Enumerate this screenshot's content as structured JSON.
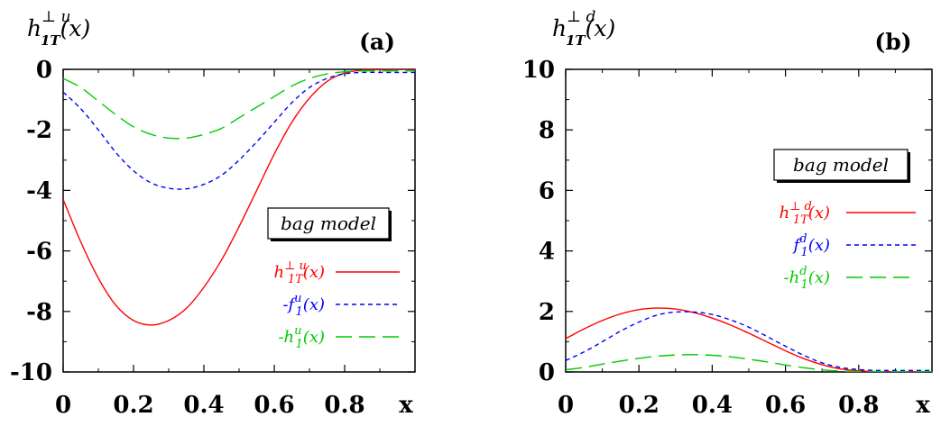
{
  "chart_data": [
    {
      "type": "line",
      "panel_label": "(a)",
      "ylabel": {
        "base": "h",
        "sup": "⊥ u",
        "sub": "1T",
        "arg": "(x)"
      },
      "xlabel": "x",
      "xlim": [
        0,
        1
      ],
      "ylim": [
        -10,
        0
      ],
      "xticks": [
        "0",
        "0.2",
        "0.4",
        "0.6",
        "0.8"
      ],
      "yticks": [
        "0",
        "-2",
        "-4",
        "-6",
        "-8",
        "-10"
      ],
      "model_label": "bag model",
      "legend_position": "center-right",
      "series": [
        {
          "name": {
            "pre": "",
            "base": "h",
            "sup": "⊥ u",
            "sub": "1T",
            "arg": "(x)"
          },
          "color": "#ff0000",
          "dash": "solid",
          "x": [
            0,
            0.05,
            0.1,
            0.15,
            0.2,
            0.25,
            0.3,
            0.35,
            0.4,
            0.45,
            0.5,
            0.55,
            0.6,
            0.65,
            0.7,
            0.75,
            0.8,
            0.85,
            0.9,
            0.95,
            1.0
          ],
          "y": [
            -4.3,
            -5.7,
            -6.9,
            -7.8,
            -8.3,
            -8.45,
            -8.3,
            -7.9,
            -7.2,
            -6.3,
            -5.2,
            -4.0,
            -2.8,
            -1.75,
            -0.95,
            -0.4,
            -0.12,
            -0.03,
            -0.01,
            0,
            0
          ]
        },
        {
          "name": {
            "pre": "-",
            "base": "f",
            "sup": "u",
            "sub": "1",
            "arg": "(x)"
          },
          "color": "#0000ff",
          "dash": "short",
          "x": [
            0,
            0.05,
            0.1,
            0.15,
            0.2,
            0.25,
            0.3,
            0.35,
            0.4,
            0.45,
            0.5,
            0.55,
            0.6,
            0.65,
            0.7,
            0.75,
            0.8,
            0.85,
            0.9,
            0.95,
            1.0
          ],
          "y": [
            -0.75,
            -1.3,
            -2.0,
            -2.75,
            -3.35,
            -3.75,
            -3.93,
            -3.95,
            -3.8,
            -3.5,
            -3.0,
            -2.4,
            -1.75,
            -1.1,
            -0.6,
            -0.3,
            -0.15,
            -0.1,
            -0.1,
            -0.1,
            -0.1
          ]
        },
        {
          "name": {
            "pre": "-",
            "base": "h",
            "sup": "u",
            "sub": "1",
            "arg": "(x)"
          },
          "color": "#00cc00",
          "dash": "long",
          "x": [
            0,
            0.05,
            0.1,
            0.15,
            0.2,
            0.25,
            0.3,
            0.35,
            0.4,
            0.45,
            0.5,
            0.55,
            0.6,
            0.65,
            0.7,
            0.75,
            0.8,
            0.85,
            0.9,
            0.95,
            1.0
          ],
          "y": [
            -0.3,
            -0.6,
            -1.05,
            -1.5,
            -1.9,
            -2.15,
            -2.27,
            -2.27,
            -2.15,
            -1.95,
            -1.6,
            -1.25,
            -0.9,
            -0.55,
            -0.3,
            -0.15,
            -0.08,
            -0.05,
            -0.05,
            -0.05,
            -0.05
          ]
        }
      ]
    },
    {
      "type": "line",
      "panel_label": "(b)",
      "ylabel": {
        "base": "h",
        "sup": "⊥ d",
        "sub": "1T",
        "arg": "(x)"
      },
      "xlabel": "x",
      "xlim": [
        0,
        1
      ],
      "ylim": [
        0,
        10
      ],
      "xticks": [
        "0",
        "0.2",
        "0.4",
        "0.6",
        "0.8"
      ],
      "yticks": [
        "0",
        "2",
        "4",
        "6",
        "8",
        "10"
      ],
      "model_label": "bag model",
      "legend_position": "center-right",
      "series": [
        {
          "name": {
            "pre": "",
            "base": "h",
            "sup": "⊥ d",
            "sub": "1T",
            "arg": "(x)"
          },
          "color": "#ff0000",
          "dash": "solid",
          "x": [
            0,
            0.05,
            0.1,
            0.15,
            0.2,
            0.25,
            0.3,
            0.35,
            0.4,
            0.45,
            0.5,
            0.55,
            0.6,
            0.65,
            0.7,
            0.75,
            0.8,
            0.85,
            0.9,
            0.95,
            1.0
          ],
          "y": [
            1.1,
            1.42,
            1.7,
            1.92,
            2.06,
            2.11,
            2.08,
            1.96,
            1.78,
            1.55,
            1.28,
            0.99,
            0.7,
            0.44,
            0.24,
            0.1,
            0.04,
            0.01,
            0,
            0,
            0
          ]
        },
        {
          "name": {
            "pre": "",
            "base": "f",
            "sup": "d",
            "sub": "1",
            "arg": "(x)"
          },
          "color": "#0000ff",
          "dash": "short",
          "x": [
            0,
            0.05,
            0.1,
            0.15,
            0.2,
            0.25,
            0.3,
            0.35,
            0.4,
            0.45,
            0.5,
            0.55,
            0.6,
            0.65,
            0.7,
            0.75,
            0.8,
            0.85,
            0.9,
            0.95,
            1.0
          ],
          "y": [
            0.38,
            0.66,
            1.0,
            1.35,
            1.65,
            1.88,
            1.98,
            1.98,
            1.9,
            1.72,
            1.48,
            1.17,
            0.85,
            0.55,
            0.3,
            0.15,
            0.08,
            0.05,
            0.05,
            0.05,
            0.05
          ]
        },
        {
          "name": {
            "pre": "-",
            "base": "h",
            "sup": "d",
            "sub": "1",
            "arg": "(x)"
          },
          "color": "#00cc00",
          "dash": "long",
          "x": [
            0,
            0.05,
            0.1,
            0.15,
            0.2,
            0.25,
            0.3,
            0.35,
            0.4,
            0.45,
            0.5,
            0.55,
            0.6,
            0.65,
            0.7,
            0.75,
            0.8,
            0.85,
            0.9,
            0.95,
            1.0
          ],
          "y": [
            0.07,
            0.15,
            0.26,
            0.36,
            0.45,
            0.52,
            0.56,
            0.57,
            0.55,
            0.5,
            0.42,
            0.33,
            0.23,
            0.14,
            0.07,
            0.03,
            0.01,
            0.01,
            0.01,
            0.01,
            0.01
          ]
        }
      ]
    }
  ]
}
